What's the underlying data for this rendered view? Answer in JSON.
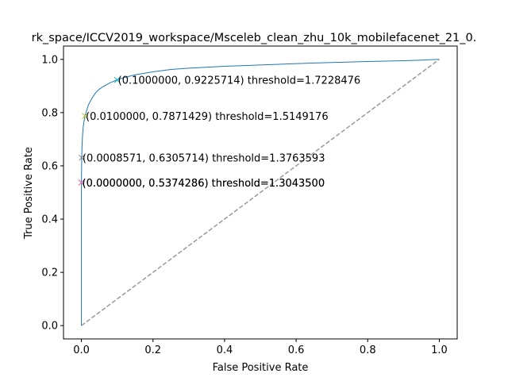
{
  "chart_data": {
    "type": "line",
    "title": "rk_space/ICCV2019_workspace/Msceleb_clean_zhu_10k_mobilefacenet_21_0.",
    "xlabel": "False Positive Rate",
    "ylabel": "True Positive Rate",
    "xlim": [
      -0.05,
      1.05
    ],
    "ylim": [
      -0.05,
      1.05
    ],
    "xticks": [
      "0.0",
      "0.2",
      "0.4",
      "0.6",
      "0.8",
      "1.0"
    ],
    "yticks": [
      "0.0",
      "0.2",
      "0.4",
      "0.6",
      "0.8",
      "1.0"
    ],
    "grid": false,
    "legend": "none",
    "series": [
      {
        "color": "#1f77b4",
        "style": "solid",
        "x": [
          0,
          0,
          0.0001,
          0.0005,
          0.0009,
          0.002,
          0.003,
          0.005,
          0.007,
          0.01,
          0.015,
          0.02,
          0.03,
          0.04,
          0.05,
          0.06,
          0.08,
          0.1,
          0.12,
          0.15,
          0.2,
          0.25,
          0.3,
          0.4,
          0.5,
          0.6,
          0.7,
          0.8,
          0.9,
          0.95,
          1.0
        ],
        "y": [
          0,
          0.5,
          0.537,
          0.58,
          0.63,
          0.68,
          0.71,
          0.745,
          0.765,
          0.787,
          0.81,
          0.83,
          0.855,
          0.875,
          0.888,
          0.897,
          0.912,
          0.923,
          0.932,
          0.942,
          0.953,
          0.962,
          0.967,
          0.974,
          0.979,
          0.984,
          0.988,
          0.992,
          0.995,
          0.997,
          1.0
        ]
      },
      {
        "color": "#999999",
        "style": "dashed",
        "x": [
          0,
          1
        ],
        "y": [
          0,
          1
        ]
      }
    ],
    "markers": [
      {
        "x": 0.0,
        "y": 0.5374286,
        "color": "#d62728",
        "label": "(0.0000000, 0.5374286) threshold=1.3043500"
      },
      {
        "x": 0.0,
        "y": 0.5374286,
        "color": "#e377c2",
        "label": "(0.0000000, 0.5374286) threshold=1.3043500"
      },
      {
        "x": 0.0008571,
        "y": 0.6305714,
        "color": "#7f7f7f",
        "label": "(0.0008571, 0.6305714) threshold=1.3763593"
      },
      {
        "x": 0.01,
        "y": 0.7871429,
        "color": "#bcbd22",
        "label": "(0.0100000, 0.7871429) threshold=1.5149176"
      },
      {
        "x": 0.1,
        "y": 0.9225714,
        "color": "#17becf",
        "label": "(0.1000000, 0.9225714) threshold=1.7228476"
      }
    ]
  }
}
